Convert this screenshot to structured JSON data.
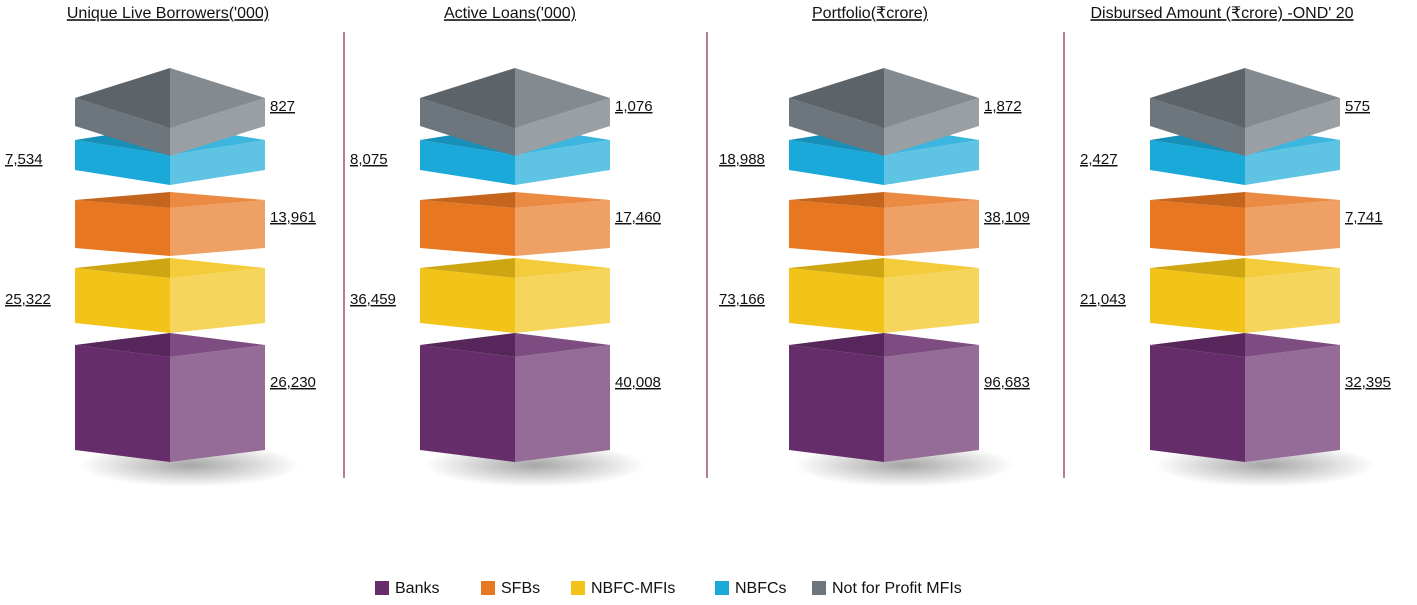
{
  "legend": [
    {
      "name": "Banks",
      "color": "#662d6b"
    },
    {
      "name": "SFBs",
      "color": "#e87722"
    },
    {
      "name": "NBFC-MFIs",
      "color": "#f2c318"
    },
    {
      "name": "NBFCs",
      "color": "#1aa9d8"
    },
    {
      "name": "Not for Profit MFIs",
      "color": "#6d767c"
    }
  ],
  "chart_data": [
    {
      "type": "block-stack",
      "title": "Unique Live Borrowers('000)",
      "values": [
        26230,
        13961,
        25322,
        7534,
        827
      ],
      "value_labels": [
        "26,230",
        "13,961",
        "25,322",
        "7,534",
        "827"
      ]
    },
    {
      "type": "block-stack",
      "title": "Active Loans('000)",
      "values": [
        40008,
        17460,
        36459,
        8075,
        1076
      ],
      "value_labels": [
        "40,008",
        "17,460",
        "36,459",
        "8,075",
        "1,076"
      ]
    },
    {
      "type": "block-stack",
      "title": "Portfolio(₹crore)",
      "values": [
        96683,
        38109,
        73166,
        18988,
        1872
      ],
      "value_labels": [
        "96,683",
        "38,109",
        "73,166",
        "18,988",
        "1,872"
      ]
    },
    {
      "type": "block-stack",
      "title": "Disbursed Amount (₹crore) -OND' 20",
      "values": [
        32395,
        7741,
        21043,
        2427,
        575
      ],
      "value_labels": [
        "32,395",
        "7,741",
        "21,043",
        "2,427",
        "575"
      ]
    }
  ]
}
